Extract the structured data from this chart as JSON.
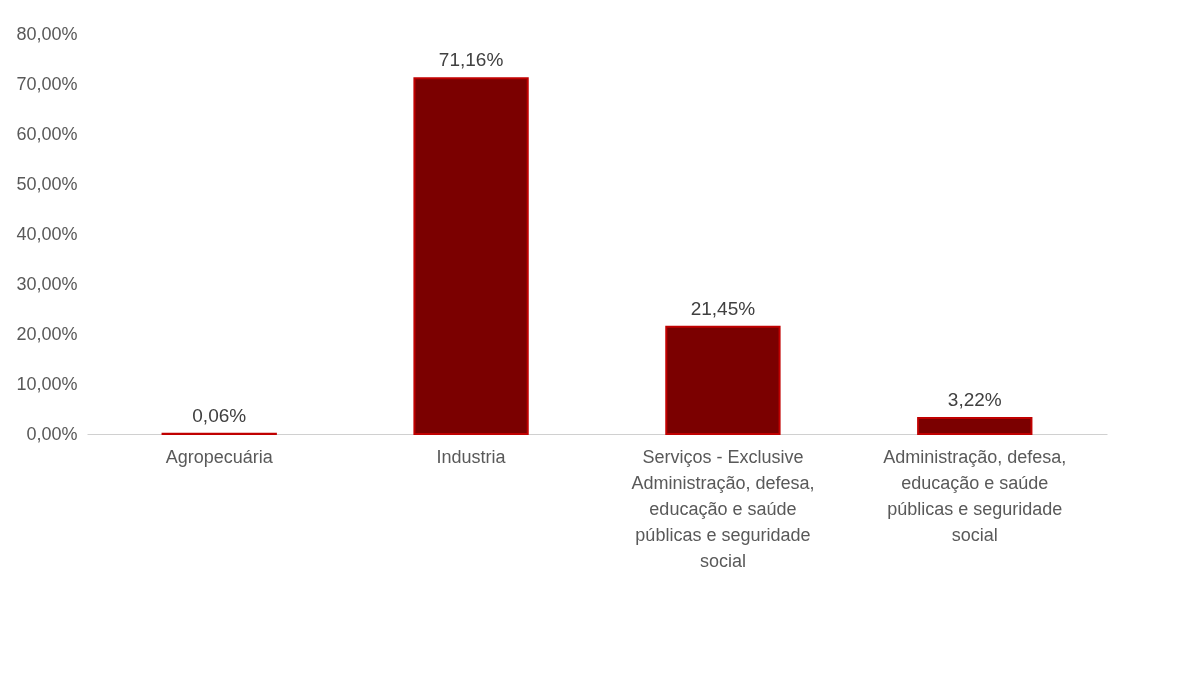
{
  "chart_data": {
    "type": "bar",
    "categories": [
      "Agropecuária",
      "Industria",
      "Serviços - Exclusive Administração, defesa, educação e saúde públicas e seguridade social",
      "Administração, defesa, educação e saúde públicas e seguridade social"
    ],
    "values": [
      0.06,
      71.16,
      21.45,
      3.22
    ],
    "value_labels": [
      "0,06%",
      "71,16%",
      "21,45%",
      "3,22%"
    ],
    "color": "#7b0000",
    "ylim": [
      0,
      80
    ],
    "yticks": [
      {
        "value": 0,
        "label": "0,00%"
      },
      {
        "value": 10,
        "label": "10,00%"
      },
      {
        "value": 20,
        "label": "20,00%"
      },
      {
        "value": 30,
        "label": "30,00%"
      },
      {
        "value": 40,
        "label": "40,00%"
      },
      {
        "value": 50,
        "label": "50,00%"
      },
      {
        "value": 60,
        "label": "60,00%"
      },
      {
        "value": 70,
        "label": "70,00%"
      },
      {
        "value": 80,
        "label": "80,00%"
      }
    ],
    "grid": false
  }
}
